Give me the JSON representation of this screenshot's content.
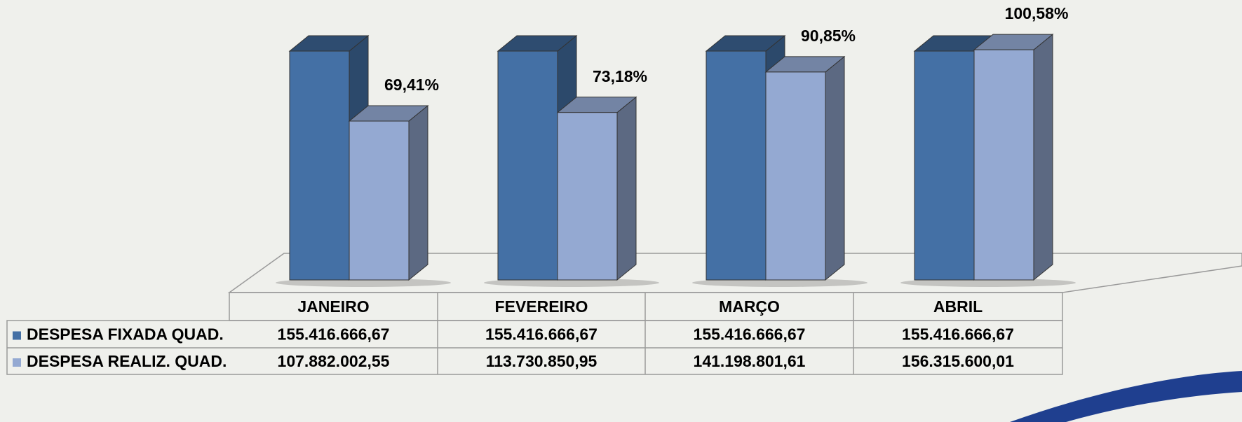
{
  "chart_data": {
    "type": "bar3d",
    "categories": [
      "JANEIRO",
      "FEVEREIRO",
      "MARÇO",
      "ABRIL"
    ],
    "series": [
      {
        "name": "DESPESA FIXADA QUAD.",
        "color": "#4470a5",
        "values": [
          155416666.67,
          155416666.67,
          155416666.67,
          155416666.67
        ],
        "value_labels": [
          "155.416.666,67",
          "155.416.666,67",
          "155.416.666,67",
          "155.416.666,67"
        ]
      },
      {
        "name": "DESPESA REALIZ. QUAD.",
        "color": "#94a9d2",
        "values": [
          107882002.55,
          113730850.95,
          141198801.61,
          156315600.01
        ],
        "value_labels": [
          "107.882.002,55",
          "113.730.850,95",
          "141.198.801,61",
          "156.315.600,01"
        ]
      }
    ],
    "annotations": [
      {
        "value": 69.41,
        "label": "69,41%"
      },
      {
        "value": 73.18,
        "label": "73,18%"
      },
      {
        "value": 90.85,
        "label": "90,85%"
      },
      {
        "value": 100.58,
        "label": "100,58%"
      }
    ]
  }
}
